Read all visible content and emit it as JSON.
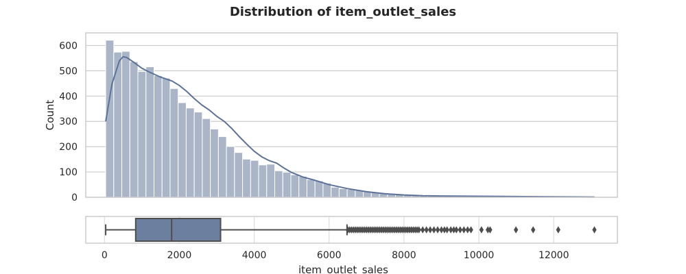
{
  "chart_data": [
    {
      "type": "histogram",
      "title": "Distribution of item_outlet_sales",
      "xlabel": "",
      "ylabel": "Count",
      "xlim": [
        -500,
        13700
      ],
      "ylim": [
        0,
        650
      ],
      "yticks": [
        0,
        100,
        200,
        300,
        400,
        500,
        600
      ],
      "bins": {
        "start": 33,
        "width": 215,
        "counts": [
          621,
          574,
          577,
          536,
          497,
          516,
          481,
          471,
          430,
          374,
          353,
          337,
          311,
          270,
          240,
          201,
          177,
          151,
          146,
          128,
          131,
          105,
          99,
          89,
          83,
          70,
          65,
          56,
          40,
          34,
          31,
          27,
          23,
          19,
          15,
          12,
          10,
          8,
          7,
          6,
          5,
          4,
          4,
          3,
          3,
          2,
          2,
          2,
          1,
          1,
          1,
          1,
          1,
          1,
          1,
          1,
          1,
          1,
          1,
          1
        ]
      },
      "kde": {
        "x": [
          33,
          200,
          400,
          500,
          600,
          800,
          1000,
          1200,
          1500,
          1800,
          2000,
          2200,
          2400,
          2600,
          2800,
          3000,
          3200,
          3400,
          3600,
          3800,
          4000,
          4200,
          4400,
          4600,
          4800,
          5000,
          5300,
          5600,
          6000,
          6500,
          7000,
          7500,
          8000,
          8500,
          9000,
          10000,
          11000,
          12000,
          13086
        ],
        "y": [
          300,
          448,
          540,
          556,
          552,
          532,
          510,
          495,
          475,
          460,
          442,
          418,
          390,
          365,
          345,
          320,
          300,
          272,
          240,
          210,
          182,
          160,
          145,
          135,
          115,
          98,
          80,
          68,
          50,
          34,
          22,
          14,
          9,
          6,
          5,
          4,
          3,
          2,
          1
        ]
      },
      "grid": true,
      "color": "#6a81a3"
    },
    {
      "type": "boxplot",
      "xlabel": "item_outlet_sales",
      "xlim": [
        -500,
        13700
      ],
      "xticks": [
        0,
        2000,
        4000,
        6000,
        8000,
        10000,
        12000
      ],
      "min_whisker": 33,
      "q1": 834,
      "median": 1794,
      "q3": 3101,
      "max_whisker": 6478,
      "outliers_range_dense": [
        6480,
        9000
      ],
      "outliers": [
        6500,
        6550,
        6600,
        6650,
        6700,
        6750,
        6800,
        6850,
        6900,
        6950,
        7000,
        7050,
        7100,
        7150,
        7200,
        7250,
        7300,
        7350,
        7400,
        7450,
        7500,
        7550,
        7600,
        7650,
        7700,
        7750,
        7800,
        7850,
        7900,
        7950,
        8000,
        8050,
        8100,
        8150,
        8200,
        8250,
        8300,
        8350,
        8400,
        8500,
        8600,
        8700,
        8800,
        8900,
        9000,
        9080,
        9150,
        9250,
        9330,
        9400,
        9500,
        9600,
        9700,
        9790,
        10070,
        10240,
        10300,
        10990,
        11450,
        12120,
        13086
      ],
      "box_color": "#6d7f9e",
      "line_color": "#4d4d4d"
    }
  ]
}
